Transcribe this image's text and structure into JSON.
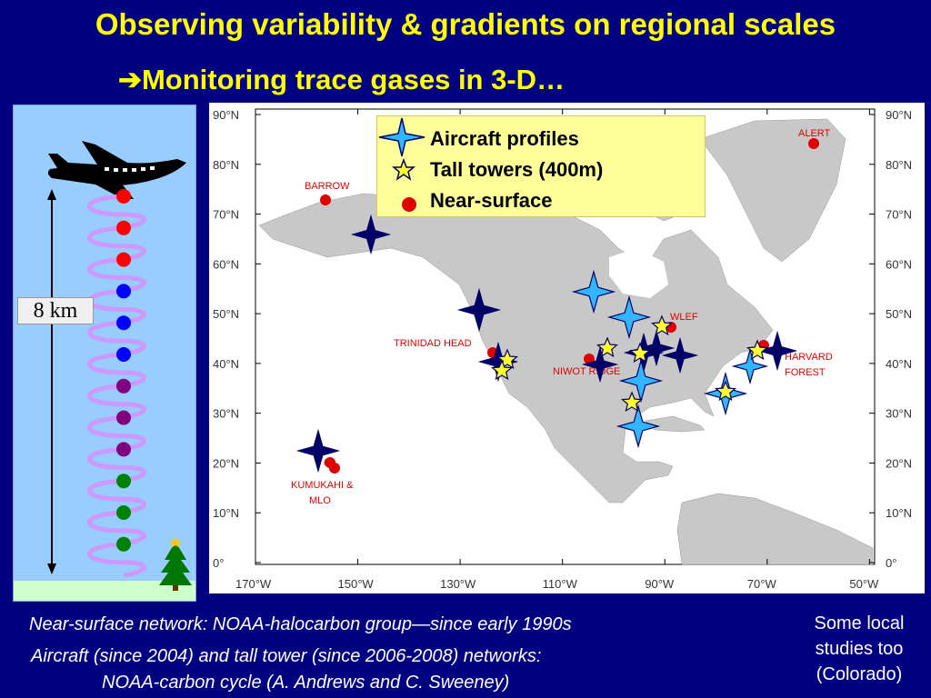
{
  "slide": {
    "title": "Observing variability & gradients on regional scales",
    "subtitle_arrow": "➔",
    "subtitle": "Monitoring trace gases in 3-D",
    "subtitle_ellipsis": "…"
  },
  "left_panel": {
    "height_label": "8 km",
    "dot_colors": [
      "#ff0000",
      "#ff0000",
      "#ff0000",
      "#0000ff",
      "#0000ff",
      "#0000ff",
      "#800080",
      "#800080",
      "#800080",
      "#008000",
      "#008000",
      "#008000"
    ]
  },
  "map": {
    "lat_labels": [
      "90°N",
      "80°N",
      "70°N",
      "60°N",
      "50°N",
      "40°N",
      "30°N",
      "20°N",
      "10°N",
      "0°"
    ],
    "lon_labels": [
      "170°W",
      "150°W",
      "130°W",
      "110°W",
      "90°W",
      "70°W",
      "50°W"
    ],
    "sites": {
      "alert": "ALERT",
      "barrow": "BARROW",
      "wlef": "WLEF",
      "trinidad_head": "TRINIDAD  HEAD",
      "niwot_ridge": "NIWOT  RIDGE",
      "harvard_line1": "HARVARD",
      "harvard_line2": "FOREST",
      "kumukahi_line1": "KUMUKAHI &",
      "kumukahi_line2": "MLO"
    },
    "colors": {
      "land": "#c8c8c8",
      "site_label": "#e00000",
      "dark_star": "#000066",
      "light_star": "#33b5ff",
      "tower_star": "#ffff33"
    }
  },
  "legend": {
    "aircraft": "Aircraft profiles",
    "towers": "Tall towers (400m)",
    "surface": "Near-surface"
  },
  "footer": {
    "line1": "Near-surface network:  NOAA-halocarbon group—since early 1990s",
    "line2": "Aircraft (since 2004) and tall tower (since 2006-2008) networks:",
    "line3": "NOAA-carbon cycle (A. Andrews and C. Sweeney)"
  },
  "side_note": {
    "line1": "Some local",
    "line2": "studies too",
    "line3": "(Colorado)"
  }
}
